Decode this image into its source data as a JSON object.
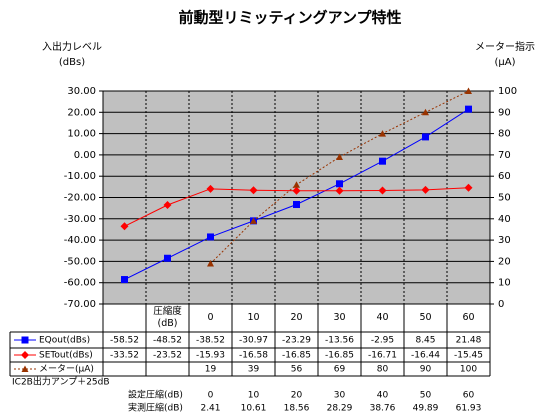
{
  "chart_data": {
    "type": "line",
    "title": "前動型リミッティングアンプ特性",
    "y_label": [
      "入出力レベル",
      "(dBs)"
    ],
    "y2_label": [
      "メーター指示",
      "(μA)"
    ],
    "categories": [
      null,
      "圧縮度(dB)",
      "0",
      "10",
      "20",
      "30",
      "40",
      "50",
      "60"
    ],
    "series": [
      {
        "name": "EQout(dBs)",
        "color": "#0000ff",
        "marker": "square",
        "dashed": false,
        "values": [
          -58.52,
          -48.52,
          -38.52,
          -30.97,
          -23.29,
          -13.56,
          -2.95,
          8.45,
          21.48
        ]
      },
      {
        "name": "SETout(dBs)",
        "color": "#ff0000",
        "marker": "diamond",
        "dashed": false,
        "values": [
          -33.52,
          -23.52,
          -15.93,
          -16.58,
          -16.85,
          -16.85,
          -16.71,
          -16.44,
          -15.45
        ]
      },
      {
        "name": "メーター(μA)",
        "color": "#993300",
        "marker": "triangle",
        "dashed": true,
        "axis": "y2",
        "values": [
          null,
          null,
          19,
          39,
          56,
          69,
          80,
          90,
          100
        ]
      }
    ],
    "ylim": [
      -70,
      30
    ],
    "yticks": [
      {
        "value": -70,
        "label": "-70.00"
      },
      {
        "value": -60,
        "label": "-60.00"
      },
      {
        "value": -50,
        "label": "-50.00"
      },
      {
        "value": -40,
        "label": "-40.00"
      },
      {
        "value": -30,
        "label": "-30.00"
      },
      {
        "value": -20,
        "label": "-20.00"
      },
      {
        "value": -10,
        "label": "-10.00"
      },
      {
        "value": 0,
        "label": "0.00"
      },
      {
        "value": 10,
        "label": "10.00"
      },
      {
        "value": 20,
        "label": "20.00"
      },
      {
        "value": 30,
        "label": "30.00"
      }
    ],
    "y2lim": [
      0,
      100
    ],
    "y2ticks": [
      0,
      10,
      20,
      30,
      40,
      50,
      60,
      70,
      80,
      90,
      100
    ],
    "grid": true,
    "plot_color": "#c0c0c0",
    "extra_table": {
      "caption": "IC2B出力アンプ＋25dB",
      "rows": [
        {
          "name": "設定圧縮(dB)",
          "values": [
            0,
            10,
            20,
            30,
            40,
            50,
            60
          ]
        },
        {
          "name": "実測圧縮(dB)",
          "values": [
            2.41,
            10.61,
            18.56,
            28.29,
            38.76,
            49.89,
            61.93
          ]
        }
      ]
    }
  }
}
